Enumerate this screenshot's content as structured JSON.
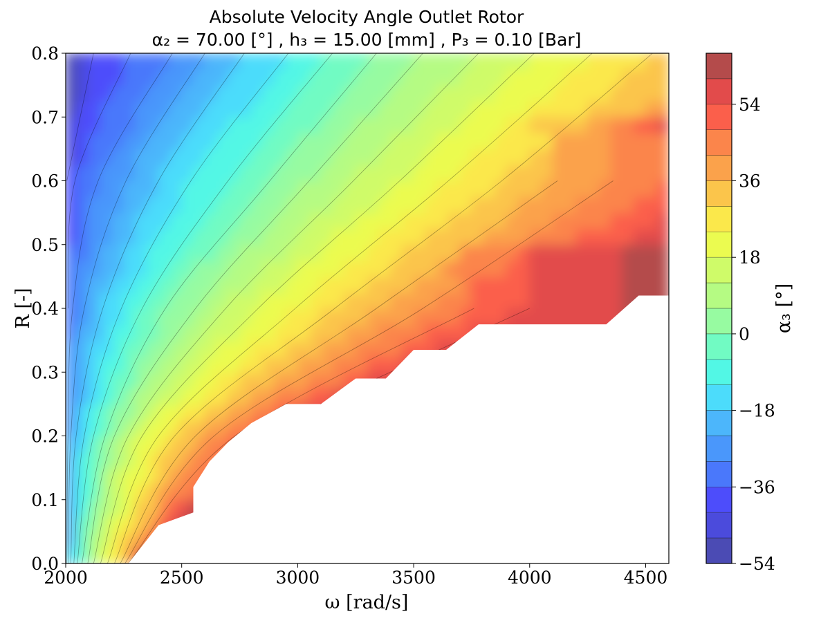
{
  "chart_data": {
    "type": "contour",
    "title": "Absolute Velocity Angle Outlet Rotor",
    "subtitle": "α₂ = 70.00 [°] , h₃ = 15.00 [mm] , P₃ = 0.10 [Bar]",
    "xlabel": "ω [rad/s]",
    "ylabel": "R [-]",
    "colorbar_label": "α₃ [°]",
    "xlim": [
      2000,
      4600
    ],
    "ylim": [
      0.0,
      0.8
    ],
    "x_ticks": [
      "2000",
      "2500",
      "3000",
      "3500",
      "4000",
      "4500"
    ],
    "y_ticks": [
      "0.0",
      "0.1",
      "0.2",
      "0.3",
      "0.4",
      "0.5",
      "0.6",
      "0.7",
      "0.8"
    ],
    "colorbar_ticks": [
      "−54",
      "−36",
      "−18",
      "0",
      "18",
      "36",
      "54"
    ],
    "colorbar_tick_values": [
      -54,
      -36,
      -18,
      0,
      18,
      36,
      54
    ],
    "levels": [
      -54,
      -48,
      -42,
      -36,
      -30,
      -24,
      -18,
      -12,
      -6,
      0,
      6,
      12,
      18,
      24,
      30,
      36,
      42,
      48,
      54,
      60,
      66
    ],
    "colormap": "jet (alpha 0.7)",
    "level_colors": [
      "#4b4bb4",
      "#4b4bdc",
      "#4d4dfb",
      "#4a78fb",
      "#4a97fb",
      "#4cb6fb",
      "#4cdcfb",
      "#52f7e5",
      "#71fbc3",
      "#97fba1",
      "#b5fb83",
      "#cffb69",
      "#ebfb50",
      "#fbe84b",
      "#fbc54b",
      "#fba24b",
      "#fb854b",
      "#fb5f4b",
      "#e24b4b",
      "#b44b4b"
    ],
    "field_description": "α₃ increases with ω and decreases with R; upper-left ≈ −54°, lower-right ≈ 66°; region below a stepped boundary (lower-right) has no data",
    "contour_lines_omega_at_R": {
      "R": [
        0.0,
        0.2,
        0.4,
        0.6,
        0.8
      ],
      "levels": [
        {
          "alpha3": -48,
          "omega": [
            null,
            null,
            null,
            null,
            2040
          ]
        },
        {
          "alpha3": -42,
          "omega": [
            null,
            null,
            null,
            2005,
            2120
          ]
        },
        {
          "alpha3": -36,
          "omega": [
            null,
            null,
            2010,
            2040,
            2280
          ]
        },
        {
          "alpha3": -30,
          "omega": [
            2005,
            2010,
            2030,
            2140,
            2460
          ]
        },
        {
          "alpha3": -24,
          "omega": [
            2012,
            2022,
            2080,
            2260,
            2600
          ]
        },
        {
          "alpha3": -18,
          "omega": [
            2022,
            2045,
            2160,
            2400,
            2770
          ]
        },
        {
          "alpha3": -12,
          "omega": [
            2035,
            2080,
            2240,
            2540,
            2960
          ]
        },
        {
          "alpha3": -6,
          "omega": [
            2050,
            2120,
            2330,
            2700,
            3150
          ]
        },
        {
          "alpha3": 0,
          "omega": [
            2070,
            2170,
            2430,
            2880,
            3340
          ]
        },
        {
          "alpha3": 6,
          "omega": [
            2095,
            2210,
            2560,
            3050,
            3540
          ]
        },
        {
          "alpha3": 12,
          "omega": [
            2120,
            2270,
            2690,
            3240,
            3780
          ]
        },
        {
          "alpha3": 18,
          "omega": [
            2150,
            2330,
            2830,
            3440,
            4020
          ]
        },
        {
          "alpha3": 24,
          "omega": [
            2180,
            2400,
            2990,
            3650,
            4270
          ]
        },
        {
          "alpha3": 30,
          "omega": [
            2210,
            2470,
            3160,
            3880,
            4530
          ]
        },
        {
          "alpha3": 36,
          "omega": [
            2235,
            2560,
            3340,
            4120,
            null
          ]
        },
        {
          "alpha3": 42,
          "omega": [
            2255,
            2640,
            3540,
            4360,
            null
          ]
        },
        {
          "alpha3": 48,
          "omega": [
            2270,
            2730,
            3760,
            null,
            null
          ]
        },
        {
          "alpha3": 54,
          "omega": [
            null,
            2800,
            4000,
            null,
            null
          ]
        },
        {
          "alpha3": 60,
          "omega": [
            null,
            null,
            4400,
            null,
            null
          ]
        }
      ]
    },
    "no_data_boundary": {
      "omega": [
        2270,
        2400,
        2550,
        2550,
        2620,
        2700,
        2800,
        2950,
        3100,
        3250,
        3380,
        3500,
        3640,
        3780,
        3950,
        4200,
        4330,
        4470,
        4600
      ],
      "R": [
        0.0,
        0.06,
        0.08,
        0.12,
        0.16,
        0.19,
        0.22,
        0.25,
        0.25,
        0.29,
        0.29,
        0.335,
        0.335,
        0.375,
        0.375,
        0.375,
        0.375,
        0.42,
        0.42
      ]
    }
  }
}
